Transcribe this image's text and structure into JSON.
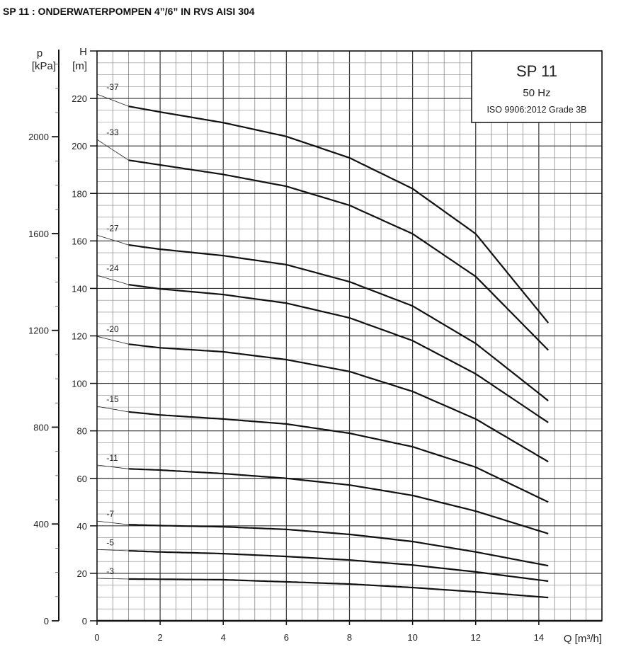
{
  "page_title": "SP 11 : ONDERWATERPOMPEN 4”/6” IN RVS AISI 304",
  "chart_data": {
    "type": "line",
    "title": "SP 11",
    "legend_box": {
      "model": "SP 11",
      "frequency": "50 Hz",
      "standard": "ISO 9906:2012 Grade 3B",
      "placement": "top-right"
    },
    "xlabel": "Q [m³/h]",
    "ylabel": "H",
    "ylabel_unit": "[m]",
    "y2label": "p",
    "y2label_unit": "[kPa]",
    "xlim": [
      0,
      16
    ],
    "ylim": [
      0,
      240
    ],
    "y2lim": [
      0,
      2354
    ],
    "xticks": [
      0,
      2,
      4,
      6,
      8,
      10,
      12,
      14
    ],
    "yticks": [
      0,
      20,
      40,
      60,
      80,
      100,
      120,
      140,
      160,
      180,
      200,
      220
    ],
    "y2ticks": [
      0,
      400,
      800,
      1200,
      1600,
      2000
    ],
    "grid": true,
    "x": [
      0,
      1,
      2,
      4,
      6,
      8,
      10,
      12,
      14.3
    ],
    "series": [
      {
        "name": "-37",
        "values": [
          221.8,
          216.7,
          214.3,
          209.8,
          204,
          195,
          182,
          163,
          125.5
        ]
      },
      {
        "name": "-33",
        "values": [
          202.7,
          194,
          192,
          188,
          183,
          175,
          163,
          145,
          114
        ]
      },
      {
        "name": "-27",
        "values": [
          162.4,
          158.3,
          156.5,
          153.8,
          150,
          142.8,
          132.6,
          116.8,
          92.7
        ]
      },
      {
        "name": "-24",
        "values": [
          145.5,
          141.6,
          139.8,
          137.4,
          133.8,
          127.6,
          118,
          104,
          83.5
        ]
      },
      {
        "name": "-20",
        "values": [
          119.8,
          116.5,
          115,
          113.3,
          110,
          105,
          96.6,
          85,
          67
        ]
      },
      {
        "name": "-15",
        "values": [
          90.3,
          88,
          86.7,
          85,
          82.9,
          79,
          73.3,
          64.7,
          50
        ]
      },
      {
        "name": "-11",
        "values": [
          65.6,
          64,
          63.5,
          62,
          60,
          57.2,
          52.8,
          46.2,
          36.7
        ]
      },
      {
        "name": "-7",
        "values": [
          42,
          40.5,
          40.1,
          39.6,
          38.5,
          36.4,
          33.4,
          29,
          23.2
        ]
      },
      {
        "name": "-5",
        "values": [
          30,
          29.5,
          29,
          28.3,
          27.1,
          25.6,
          23.5,
          20.6,
          16.7
        ]
      },
      {
        "name": "-3",
        "values": [
          17.9,
          17.6,
          17.5,
          17.3,
          16.4,
          15.5,
          14,
          12.2,
          9.8
        ]
      }
    ]
  }
}
